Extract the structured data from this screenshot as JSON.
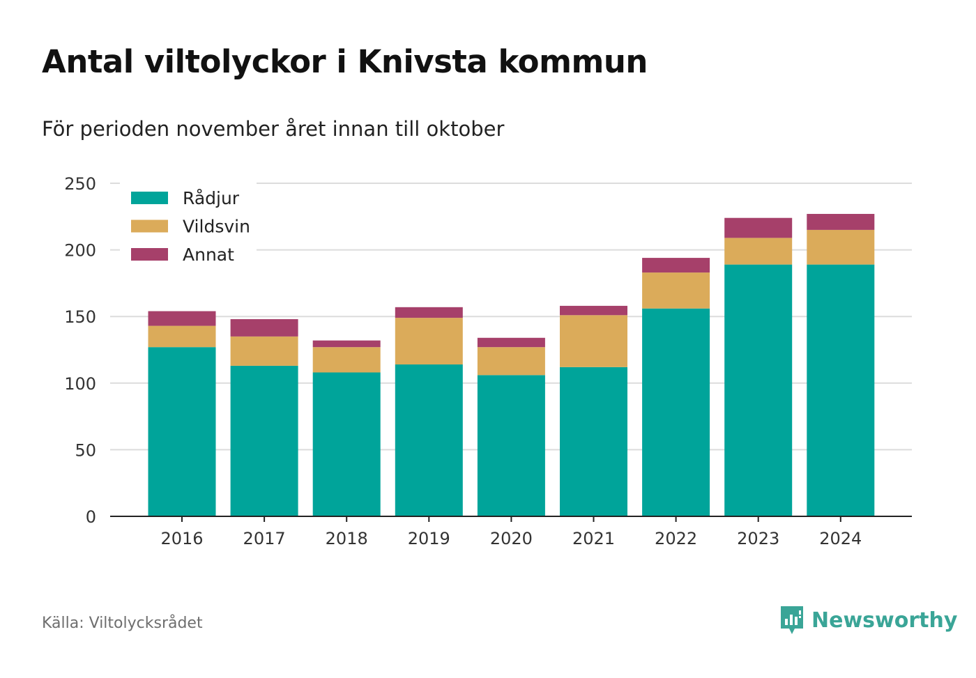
{
  "title": "Antal viltolyckor i Knivsta kommun",
  "subtitle": "För perioden november året innan till oktober",
  "source": "Källa: Viltolycksrådet",
  "brand": {
    "name": "Newsworthy",
    "icon": "bar-chart-speech-bubble-icon"
  },
  "colors": {
    "radjur": "#00a49a",
    "vildsvin": "#dbab5a",
    "annat": "#a6406a",
    "grid": "#dcdcdc",
    "axis": "#222222",
    "brand": "#3aa597"
  },
  "chart_data": {
    "type": "bar",
    "stacked": true,
    "categories": [
      "2016",
      "2017",
      "2018",
      "2019",
      "2020",
      "2021",
      "2022",
      "2023",
      "2024"
    ],
    "series": [
      {
        "name": "Rådjur",
        "values": [
          127,
          113,
          108,
          114,
          106,
          112,
          156,
          189,
          189
        ]
      },
      {
        "name": "Vildsvin",
        "values": [
          16,
          22,
          19,
          35,
          21,
          39,
          27,
          20,
          26
        ]
      },
      {
        "name": "Annat",
        "values": [
          11,
          13,
          5,
          8,
          7,
          7,
          11,
          15,
          12
        ]
      }
    ],
    "ylim": [
      0,
      250
    ],
    "yticks": [
      0,
      50,
      100,
      150,
      200,
      250
    ],
    "grid": true,
    "legend": "top-left",
    "xlabel": "",
    "ylabel": ""
  }
}
